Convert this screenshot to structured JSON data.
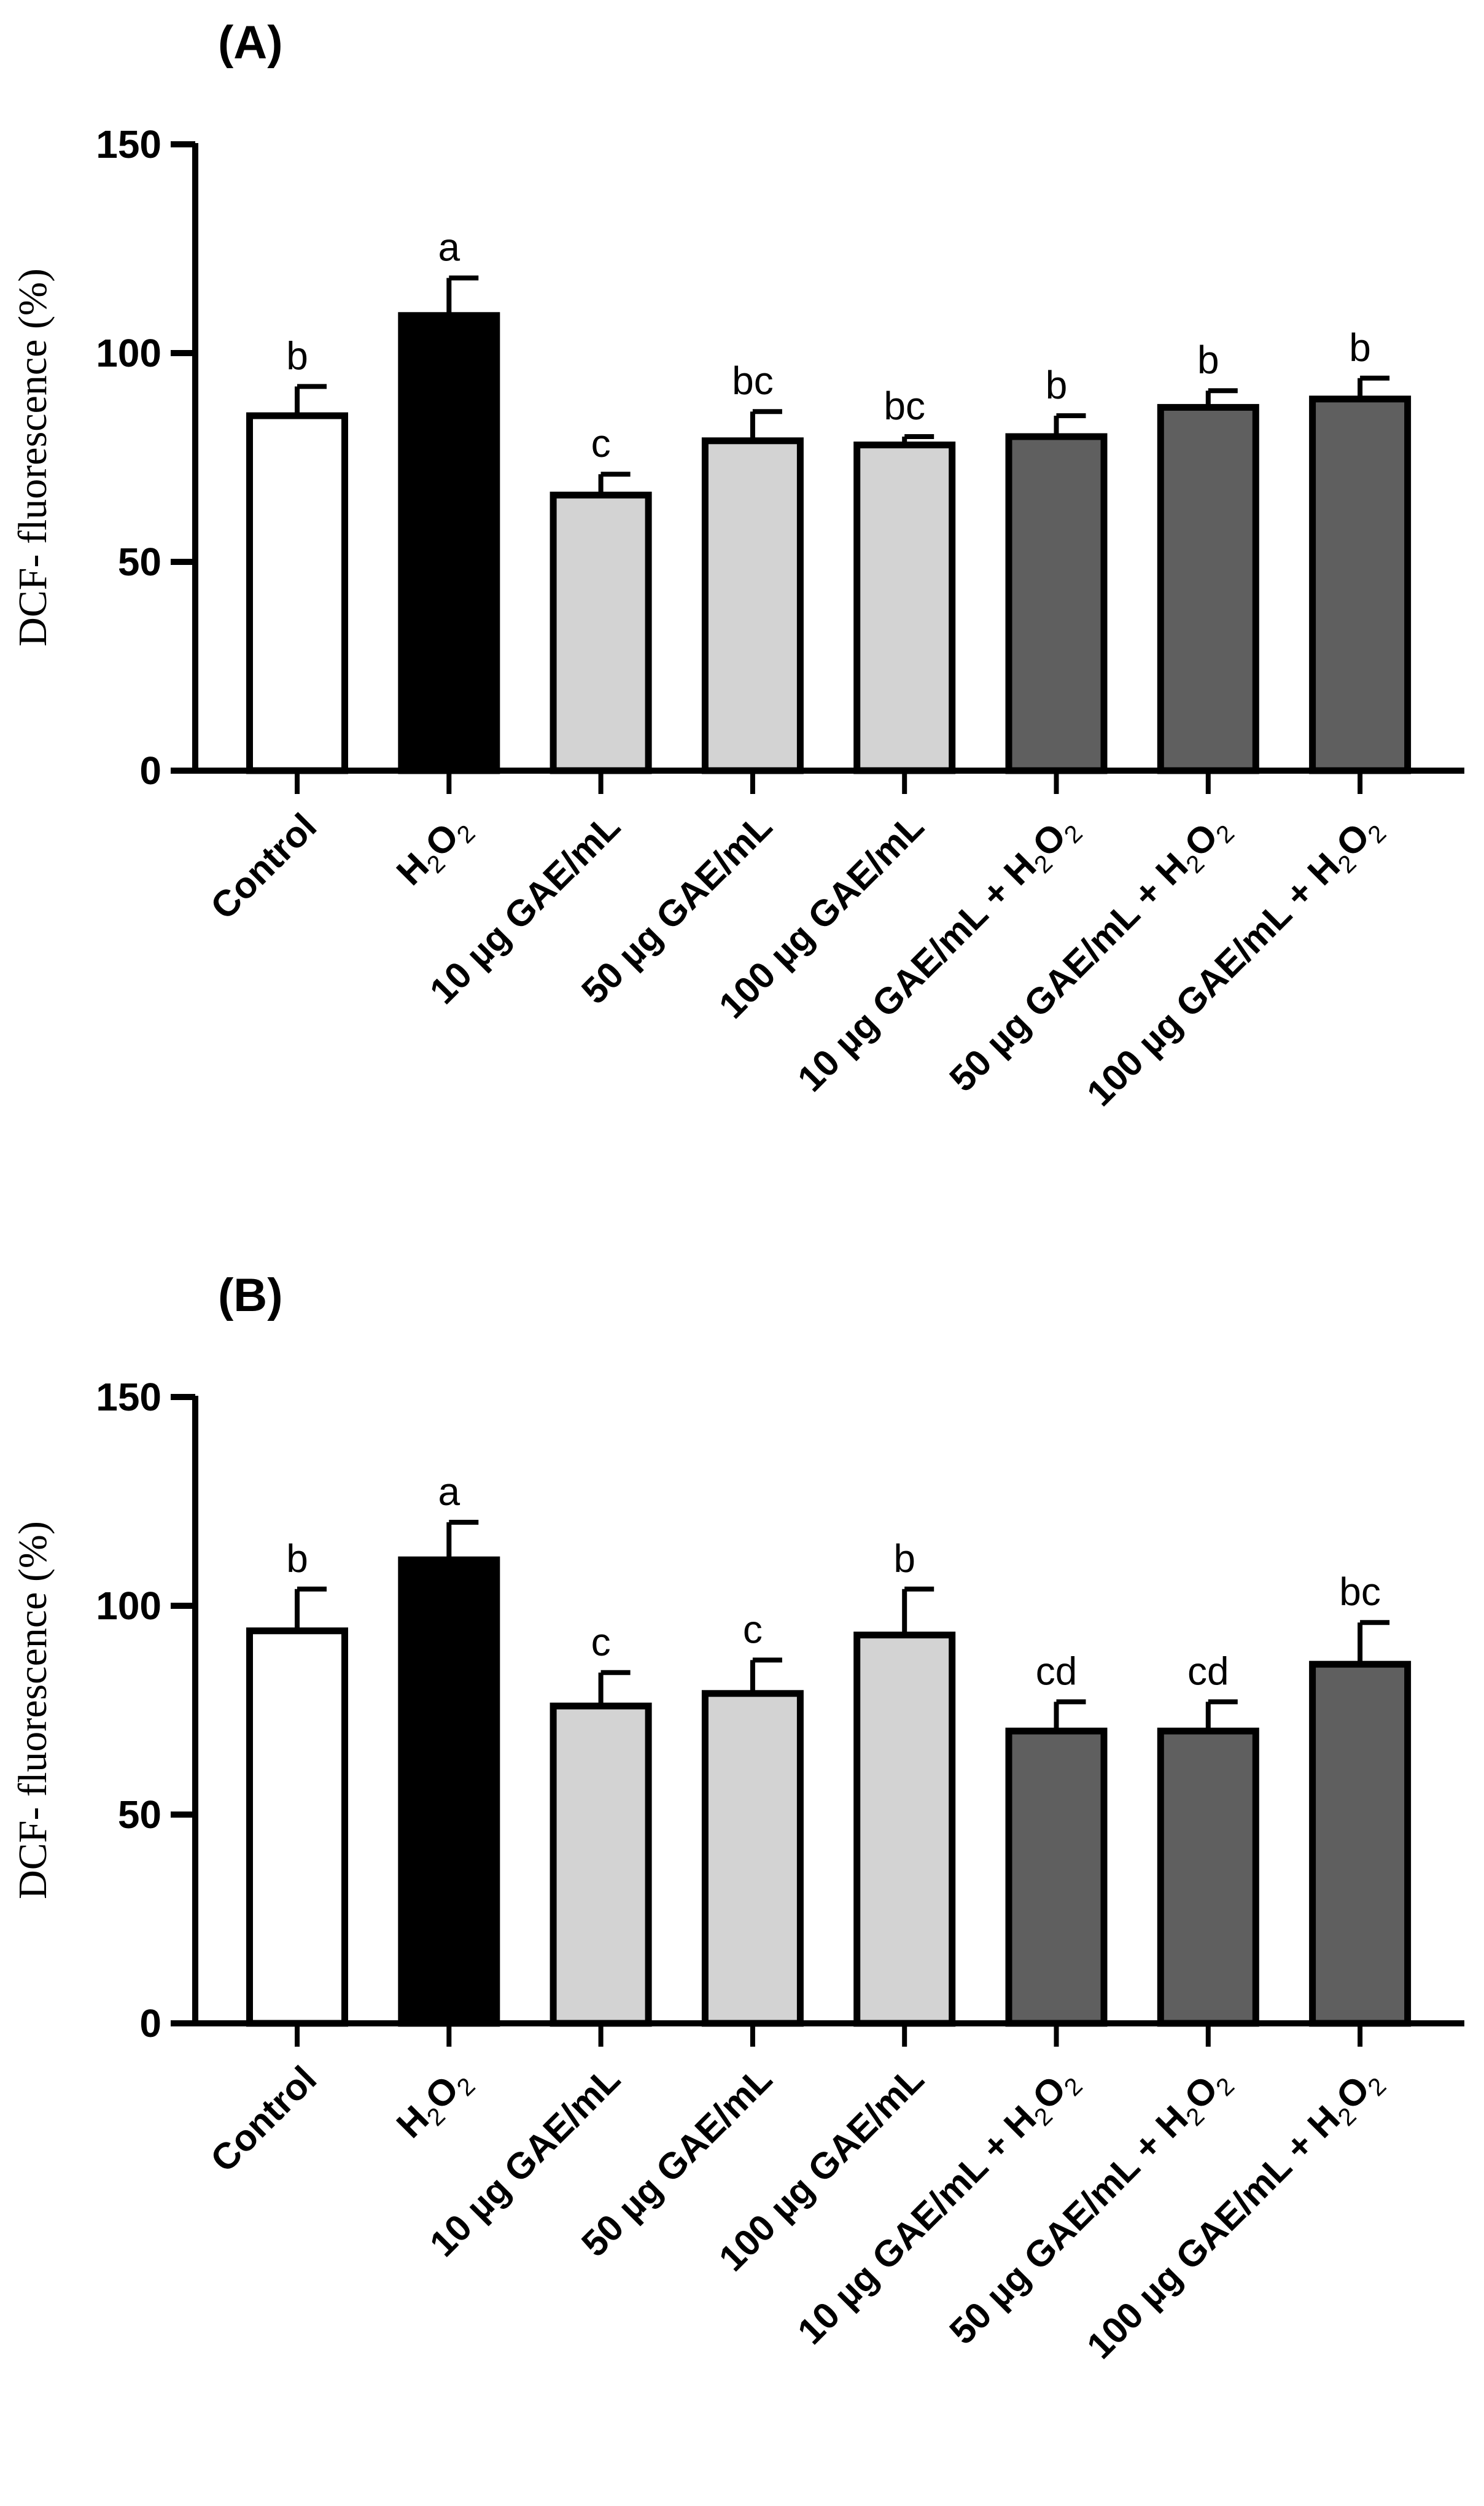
{
  "chart_data": [
    {
      "type": "bar",
      "panel_label": "(A)",
      "ylabel": "DCF- fluorescence (%)",
      "xlabel": "",
      "ylim": [
        0,
        150
      ],
      "yticks": [
        "0",
        "50",
        "100",
        "150"
      ],
      "categories": [
        {
          "prefix": "Control",
          "sub": "",
          "suffix": ""
        },
        {
          "prefix": "H",
          "sub": "2",
          "mid": "O",
          "sub2": "2",
          "suffix": ""
        },
        {
          "prefix": "10 µg GAE/mL",
          "sub": "",
          "suffix": ""
        },
        {
          "prefix": "50 µg GAE/mL",
          "sub": "",
          "suffix": ""
        },
        {
          "prefix": "100 µg GAE/mL",
          "sub": "",
          "suffix": ""
        },
        {
          "prefix": "10 µg GAE/mL + H",
          "sub": "2",
          "mid": "O",
          "sub2": "2",
          "suffix": ""
        },
        {
          "prefix": "50 µg GAE/mL + H",
          "sub": "2",
          "mid": "O",
          "sub2": "2",
          "suffix": ""
        },
        {
          "prefix": "100 µg GAE/mL + H",
          "sub": "2",
          "mid": "O",
          "sub2": "2",
          "suffix": ""
        }
      ],
      "values": [
        85,
        109,
        66,
        79,
        78,
        80,
        87,
        89
      ],
      "errors": [
        7,
        9,
        5,
        7,
        2,
        5,
        4,
        5
      ],
      "significance": [
        "b",
        "a",
        "c",
        "bc",
        "bc",
        "b",
        "b",
        "b"
      ],
      "bar_colors": [
        "#ffffff",
        "#000000",
        "#d3d3d3",
        "#d3d3d3",
        "#d3d3d3",
        "#5f5f5f",
        "#5f5f5f",
        "#5f5f5f"
      ]
    },
    {
      "type": "bar",
      "panel_label": "(B)",
      "ylabel": "DCF- fluorescence (%)",
      "xlabel": "",
      "ylim": [
        0,
        150
      ],
      "yticks": [
        "0",
        "50",
        "100",
        "150"
      ],
      "categories": [
        {
          "prefix": "Control",
          "sub": "",
          "suffix": ""
        },
        {
          "prefix": "H",
          "sub": "2",
          "mid": "O",
          "sub2": "2",
          "suffix": ""
        },
        {
          "prefix": "10 µg GAE/mL",
          "sub": "",
          "suffix": ""
        },
        {
          "prefix": "50 µg GAE/mL",
          "sub": "",
          "suffix": ""
        },
        {
          "prefix": "100 µg GAE/mL",
          "sub": "",
          "suffix": ""
        },
        {
          "prefix": "10 µg GAE/mL + H",
          "sub": "2",
          "mid": "O",
          "sub2": "2",
          "suffix": ""
        },
        {
          "prefix": "50  µg GAE/mL + H",
          "sub": "2",
          "mid": "O",
          "sub2": "2",
          "suffix": ""
        },
        {
          "prefix": "100  µg GAE/mL + H",
          "sub": "2",
          "mid": "O",
          "sub2": "2",
          "suffix": ""
        }
      ],
      "values": [
        94,
        111,
        76,
        79,
        93,
        70,
        70,
        86
      ],
      "errors": [
        10,
        9,
        8,
        8,
        11,
        7,
        7,
        10
      ],
      "significance": [
        "b",
        "a",
        "c",
        "c",
        "b",
        "cd",
        "cd",
        "bc"
      ],
      "bar_colors": [
        "#ffffff",
        "#000000",
        "#d3d3d3",
        "#d3d3d3",
        "#d3d3d3",
        "#5f5f5f",
        "#5f5f5f",
        "#5f5f5f"
      ]
    }
  ]
}
